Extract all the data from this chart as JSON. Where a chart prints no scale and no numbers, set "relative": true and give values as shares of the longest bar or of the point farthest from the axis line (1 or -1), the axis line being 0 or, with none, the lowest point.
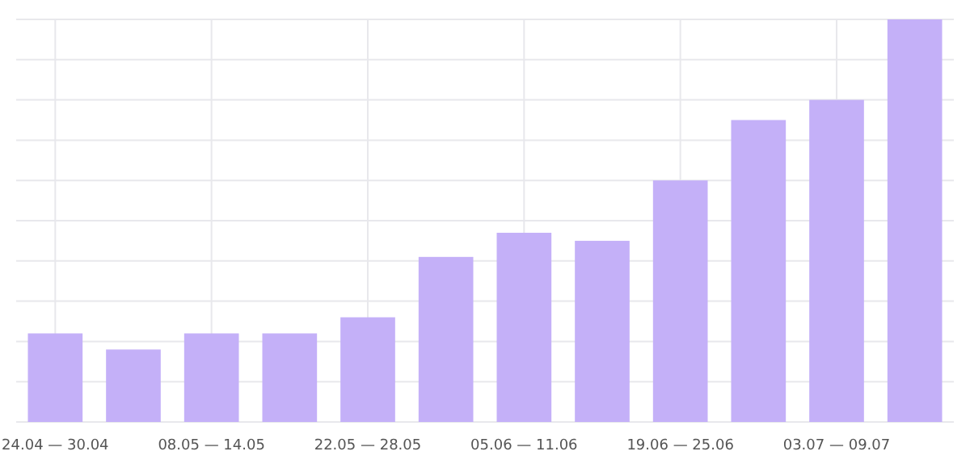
{
  "chart_data": {
    "type": "bar",
    "relative": true,
    "grid": true,
    "color": "#c4b0f8",
    "categories": [
      "24.04 — 30.04",
      null,
      "08.05 — 14.05",
      null,
      "22.05 — 28.05",
      null,
      "05.06 — 11.06",
      null,
      "19.06 — 25.06",
      null,
      "03.07 — 09.07",
      null
    ],
    "values": [
      0.22,
      0.18,
      0.22,
      0.22,
      0.26,
      0.41,
      0.47,
      0.45,
      0.6,
      0.75,
      0.8,
      1
    ]
  }
}
